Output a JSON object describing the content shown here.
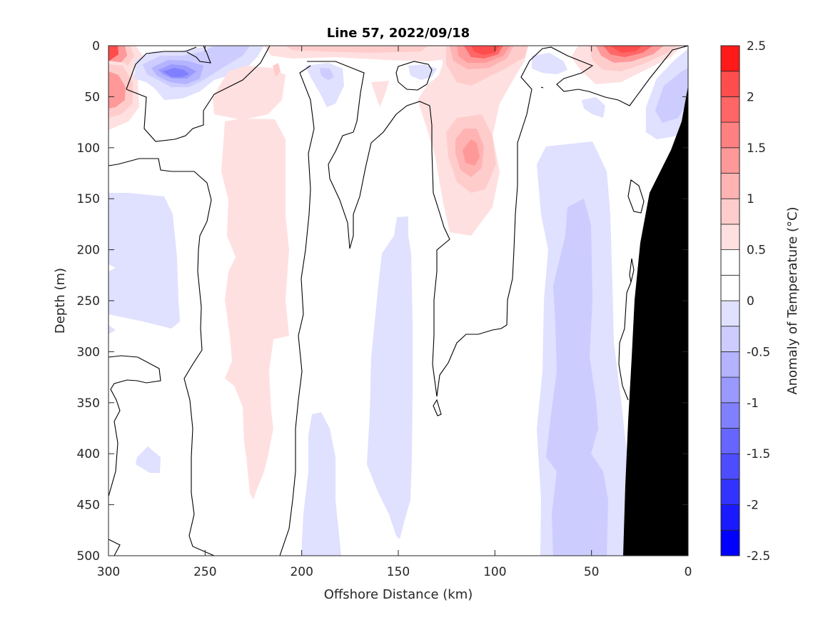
{
  "chart_data": {
    "type": "heatmap",
    "subtype": "filled-contour section",
    "title": "Line 57, 2022/09/18",
    "xlabel": "Offshore Distance (km)",
    "ylabel": "Depth (m)",
    "xlim": [
      300,
      0
    ],
    "ylim": [
      0,
      500
    ],
    "x_reversed": true,
    "y_reversed": true,
    "xticks": [
      300,
      250,
      200,
      150,
      100,
      50,
      0
    ],
    "xtick_labels": [
      "300",
      "250",
      "200",
      "150",
      "100",
      "50",
      "0"
    ],
    "yticks": [
      0,
      50,
      100,
      150,
      200,
      250,
      300,
      350,
      400,
      450,
      500
    ],
    "ytick_labels": [
      "0",
      "50",
      "100",
      "150",
      "200",
      "250",
      "300",
      "350",
      "400",
      "450",
      "500"
    ],
    "colorbar": {
      "label": "Anomaly of Temperature (°C)",
      "range": [
        -2.5,
        2.5
      ],
      "step": 0.25,
      "ticks": [
        2.5,
        2,
        1.5,
        1,
        0.5,
        0,
        -0.5,
        -1,
        -1.5,
        -2,
        -2.5
      ],
      "tick_labels": [
        "2.5",
        "2",
        "1.5",
        "1",
        "0.5",
        "0",
        "-0.5",
        "-1",
        "-1.5",
        "-2",
        "-2.5"
      ],
      "colors": [
        "#0000ff",
        "#1a1aff",
        "#3333ff",
        "#4d4dff",
        "#6666ff",
        "#8080ff",
        "#9999ff",
        "#b3b3ff",
        "#ccccff",
        "#e0e0ff",
        "#ffffff",
        "#ffffff",
        "#ffe0e0",
        "#ffcccc",
        "#ffb3b3",
        "#ff9999",
        "#ff8080",
        "#ff6666",
        "#ff4d4d",
        "#ff1a1a"
      ]
    },
    "zero_contour": true,
    "bathymetry_color": "#000000",
    "features": [
      {
        "name": "warm-surface-nearshore-west",
        "anomaly": 2.25,
        "x_km": 298,
        "depth_m": 10
      },
      {
        "name": "warm-west-edge-60m",
        "anomaly": 1.25,
        "x_km": 298,
        "depth_m": 65
      },
      {
        "name": "cold-core-270km",
        "anomaly": -1.5,
        "x_km": 270,
        "depth_m": 30
      },
      {
        "name": "warm-surface-105km",
        "anomaly": 2.0,
        "x_km": 105,
        "depth_m": 10
      },
      {
        "name": "warm-subsurface-110km",
        "anomaly": 1.0,
        "x_km": 112,
        "depth_m": 100
      },
      {
        "name": "warm-surface-30km",
        "anomaly": 2.0,
        "x_km": 30,
        "depth_m": 5
      },
      {
        "name": "warm-band-225km",
        "anomaly": 0.25,
        "x_km": 225,
        "depth_m": 300
      },
      {
        "name": "cool-band-60km",
        "anomaly": -0.5,
        "x_km": 60,
        "depth_m": 350
      },
      {
        "name": "cool-band-150km",
        "anomaly": -0.25,
        "x_km": 150,
        "depth_m": 350
      },
      {
        "name": "cool-patch-285km",
        "anomaly": -0.25,
        "x_km": 285,
        "depth_m": 220
      }
    ]
  }
}
